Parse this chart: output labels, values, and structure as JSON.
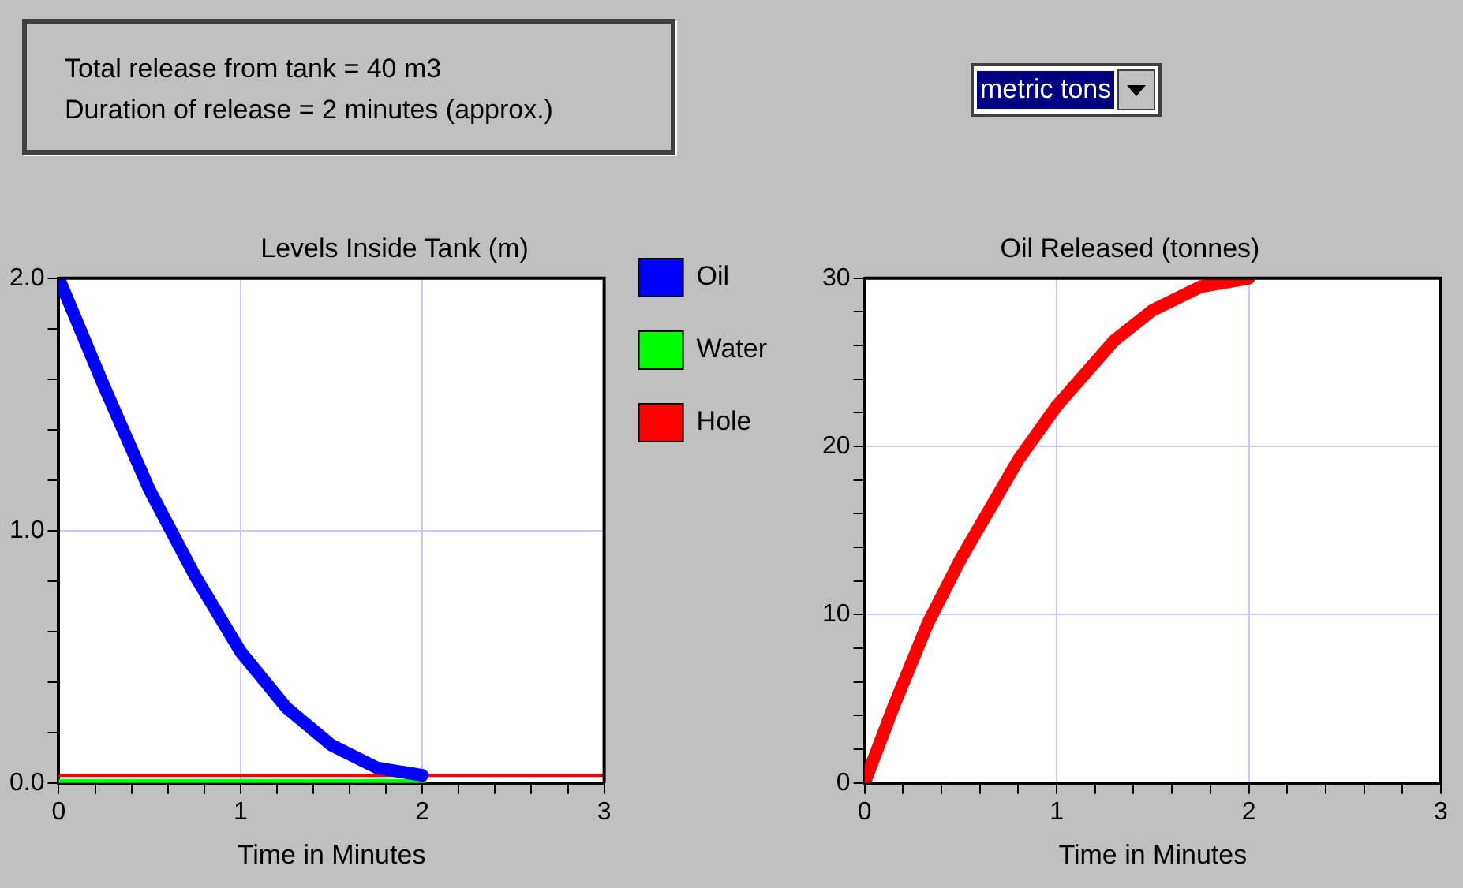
{
  "chart_data": [
    {
      "type": "other",
      "annotations": [
        "Total release from tank = 40 m3",
        "Duration of release = 2 minutes (approx.)",
        "metric tons"
      ]
    },
    {
      "type": "line",
      "title": "Levels Inside Tank (m)",
      "xlabel": "Time in Minutes",
      "xlim": [
        0,
        3
      ],
      "ylim": [
        0,
        2
      ],
      "xticks": [
        0,
        {
          "value": 0.2,
          "label": null
        },
        {
          "value": 0.4,
          "label": null
        },
        {
          "value": 0.6,
          "label": null
        },
        {
          "value": 0.8,
          "label": null
        },
        1,
        {
          "value": 1.2,
          "label": null
        },
        {
          "value": 1.4,
          "label": null
        },
        {
          "value": 1.6,
          "label": null
        },
        {
          "value": 1.8,
          "label": null
        },
        2,
        {
          "value": 2.2,
          "label": null
        },
        {
          "value": 2.4,
          "label": null
        },
        {
          "value": 2.6,
          "label": null
        },
        {
          "value": 2.8,
          "label": null
        },
        3
      ],
      "yticks": [
        {
          "value": 0,
          "label": "0.0"
        },
        {
          "value": 0.2,
          "label": null
        },
        {
          "value": 0.4,
          "label": null
        },
        {
          "value": 0.6,
          "label": null
        },
        {
          "value": 0.8,
          "label": null
        },
        {
          "value": 1,
          "label": "1.0"
        },
        {
          "value": 1.2,
          "label": null
        },
        {
          "value": 1.4,
          "label": null
        },
        {
          "value": 1.6,
          "label": null
        },
        {
          "value": 1.8,
          "label": null
        },
        {
          "value": 2,
          "label": "2.0"
        }
      ],
      "grid": true,
      "legend": "right",
      "marker": "none",
      "series": [
        {
          "name": "Oil",
          "color": "#0000ff",
          "x": [
            0,
            0.25,
            0.5,
            0.75,
            1,
            1.25,
            1.5,
            1.75,
            2
          ],
          "values": [
            2.0,
            1.57,
            1.16,
            0.82,
            0.52,
            0.3,
            0.15,
            0.06,
            0.03
          ]
        },
        {
          "name": "Water",
          "color": "#00ff00",
          "x": [
            0,
            2
          ],
          "values": [
            0,
            0
          ]
        },
        {
          "name": "Hole",
          "color": "#ff0000",
          "x": [
            0,
            3
          ],
          "values": [
            0.03,
            0.03
          ]
        }
      ]
    },
    {
      "type": "line",
      "title": "Oil Released (tonnes)",
      "xlabel": "Time in Minutes",
      "xlim": [
        0,
        3
      ],
      "ylim": [
        0,
        30
      ],
      "xticks": [
        0,
        {
          "value": 0.2,
          "label": null
        },
        {
          "value": 0.4,
          "label": null
        },
        {
          "value": 0.6,
          "label": null
        },
        {
          "value": 0.8,
          "label": null
        },
        1,
        {
          "value": 1.2,
          "label": null
        },
        {
          "value": 1.4,
          "label": null
        },
        {
          "value": 1.6,
          "label": null
        },
        {
          "value": 1.8,
          "label": null
        },
        2,
        {
          "value": 2.2,
          "label": null
        },
        {
          "value": 2.4,
          "label": null
        },
        {
          "value": 2.6,
          "label": null
        },
        {
          "value": 2.8,
          "label": null
        },
        3
      ],
      "yticks": [
        0,
        {
          "value": 2,
          "label": null
        },
        {
          "value": 4,
          "label": null
        },
        {
          "value": 6,
          "label": null
        },
        {
          "value": 8,
          "label": null
        },
        10,
        {
          "value": 12,
          "label": null
        },
        {
          "value": 14,
          "label": null
        },
        {
          "value": 16,
          "label": null
        },
        {
          "value": 18,
          "label": null
        },
        20,
        {
          "value": 22,
          "label": null
        },
        {
          "value": 24,
          "label": null
        },
        {
          "value": 26,
          "label": null
        },
        {
          "value": 28,
          "label": null
        },
        30
      ],
      "grid": true,
      "marker": "none",
      "series": [
        {
          "color": "#ff0000",
          "x": [
            0,
            0.15,
            0.33,
            0.5,
            0.8,
            1,
            1.3,
            1.5,
            1.75,
            2
          ],
          "values": [
            0,
            4.5,
            9.5,
            13.3,
            19.2,
            22.4,
            26.3,
            28.1,
            29.5,
            30
          ]
        }
      ]
    }
  ]
}
